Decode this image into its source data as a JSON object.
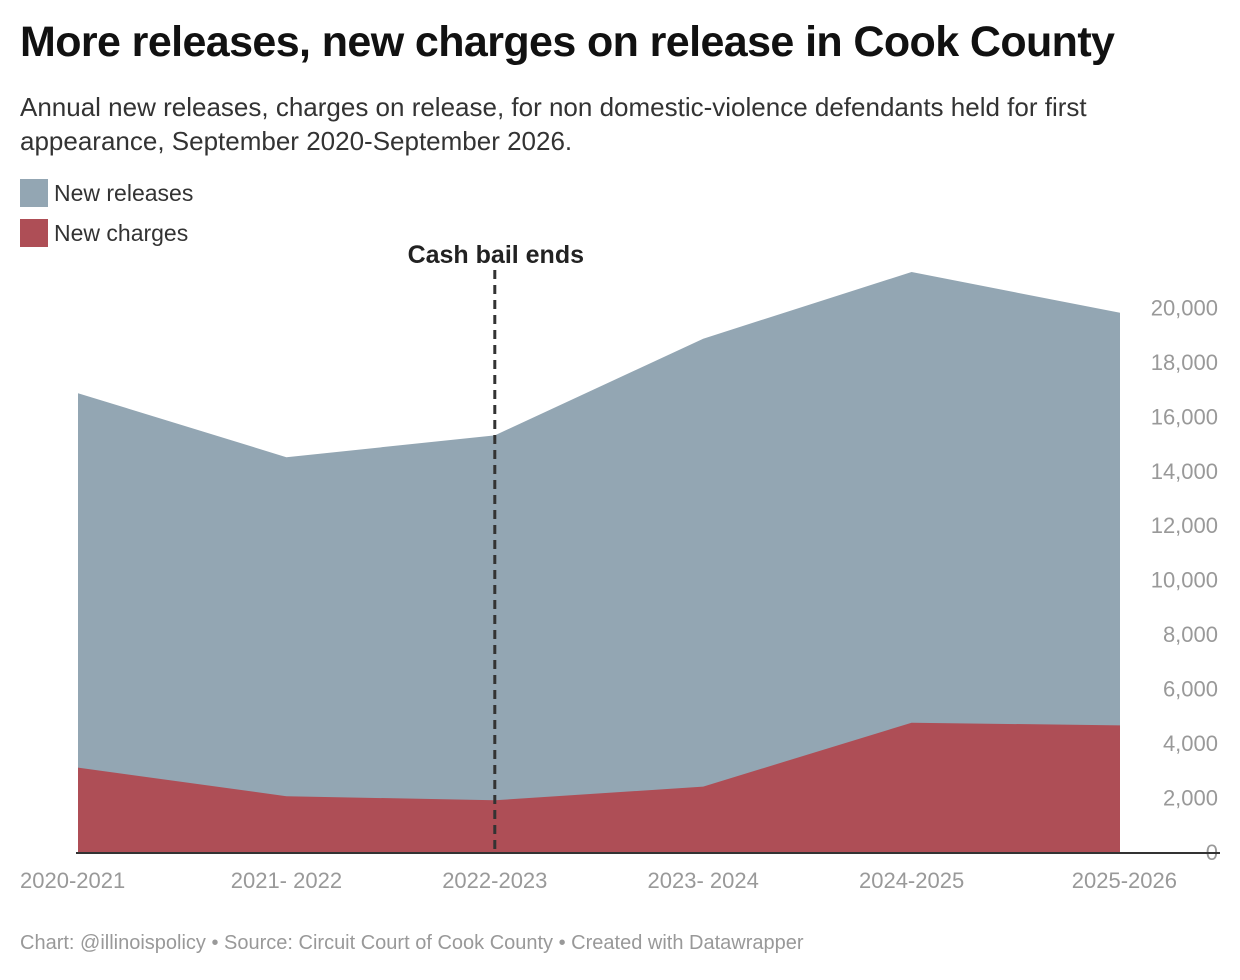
{
  "title": "More releases, new charges on release in Cook County",
  "subtitle": "Annual new releases, charges on release, for non domestic-violence defendants held for first appearance, September 2020-September 2026.",
  "footer": "Chart: @illinoispolicy • Source: Circuit Court of Cook County • Created with Datawrapper",
  "chart_data": {
    "type": "area",
    "categories": [
      "2020-2021",
      "2021- 2022",
      "2022-2023",
      "2023- 2024",
      "2024-2025",
      "2025-2026"
    ],
    "series": [
      {
        "name": "New releases",
        "values": [
          16850,
          14500,
          15300,
          18850,
          21300,
          19800
        ],
        "color": "#93a6b3"
      },
      {
        "name": "New charges",
        "values": [
          3100,
          2050,
          1900,
          2400,
          4750,
          4650
        ],
        "color": "#ae4e56"
      }
    ],
    "ylim": [
      0,
      21300
    ],
    "yticks": [
      0,
      2000,
      4000,
      6000,
      8000,
      10000,
      12000,
      14000,
      16000,
      18000,
      20000
    ],
    "y_axis_side": "right",
    "grid": false,
    "legend_position": "top-left",
    "annotations": [
      {
        "text": "Cash bail ends",
        "x_category": "2022-2023",
        "style": "dashed vertical line"
      }
    ],
    "colors": {
      "axis_line": "#333333",
      "tick_label": "#999999",
      "annotation": "#333333"
    }
  }
}
